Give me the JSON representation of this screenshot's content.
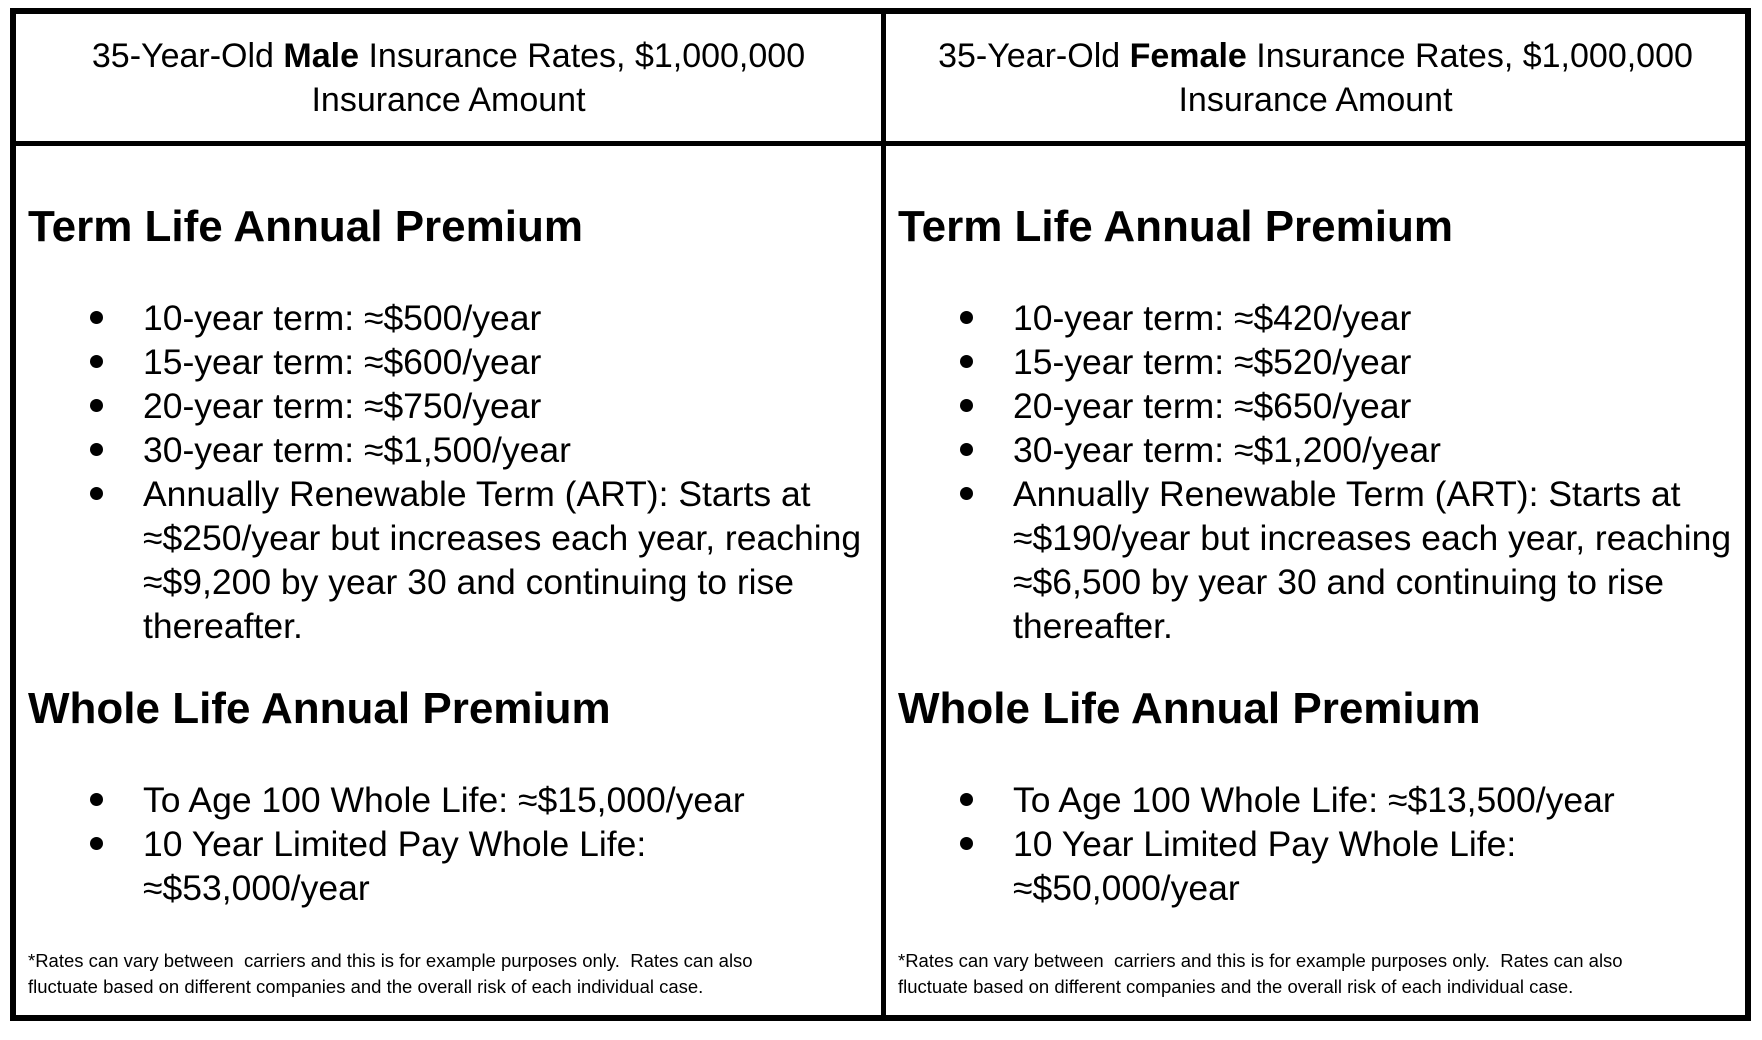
{
  "columns": [
    {
      "header": {
        "prefix": "35-Year-Old",
        "gender": "Male",
        "suffix": "Insurance Rates, $1,000,000 Insurance Amount"
      },
      "term_section": {
        "heading": "Term Life Annual Premium",
        "items": [
          "10-year term: ≈$500/year",
          "15-year term: ≈$600/year",
          "20-year term: ≈$750/year",
          "30-year term: ≈$1,500/year",
          "Annually Renewable Term (ART): Starts at ≈$250/year but increases each year, reaching ≈$9,200 by year 30 and continuing to rise thereafter."
        ]
      },
      "whole_section": {
        "heading": "Whole Life Annual Premium",
        "items": [
          "To Age 100 Whole Life: ≈$15,000/year",
          "10 Year Limited Pay Whole Life: ≈$53,000/year"
        ]
      },
      "footnote": "*Rates can vary between  carriers and this is for example purposes only.  Rates can also fluctuate based on different companies and the overall risk of each individual case."
    },
    {
      "header": {
        "prefix": "35-Year-Old",
        "gender": "Female",
        "suffix": "Insurance Rates, $1,000,000 Insurance Amount"
      },
      "term_section": {
        "heading": "Term Life Annual Premium",
        "items": [
          "10-year term: ≈$420/year",
          "15-year term: ≈$520/year",
          "20-year term: ≈$650/year",
          "30-year term: ≈$1,200/year",
          "Annually Renewable Term (ART): Starts at ≈$190/year but increases each year, reaching ≈$6,500 by year 30 and continuing to rise thereafter."
        ]
      },
      "whole_section": {
        "heading": "Whole Life Annual Premium",
        "items": [
          "To Age 100 Whole Life: ≈$13,500/year",
          "10 Year Limited Pay Whole Life: ≈$50,000/year"
        ]
      },
      "footnote": "*Rates can vary between  carriers and this is for example purposes only.  Rates can also fluctuate based on different companies and the overall risk of each individual case."
    }
  ],
  "colors": {
    "text": "#000000",
    "border": "#000000",
    "background": "#ffffff"
  }
}
